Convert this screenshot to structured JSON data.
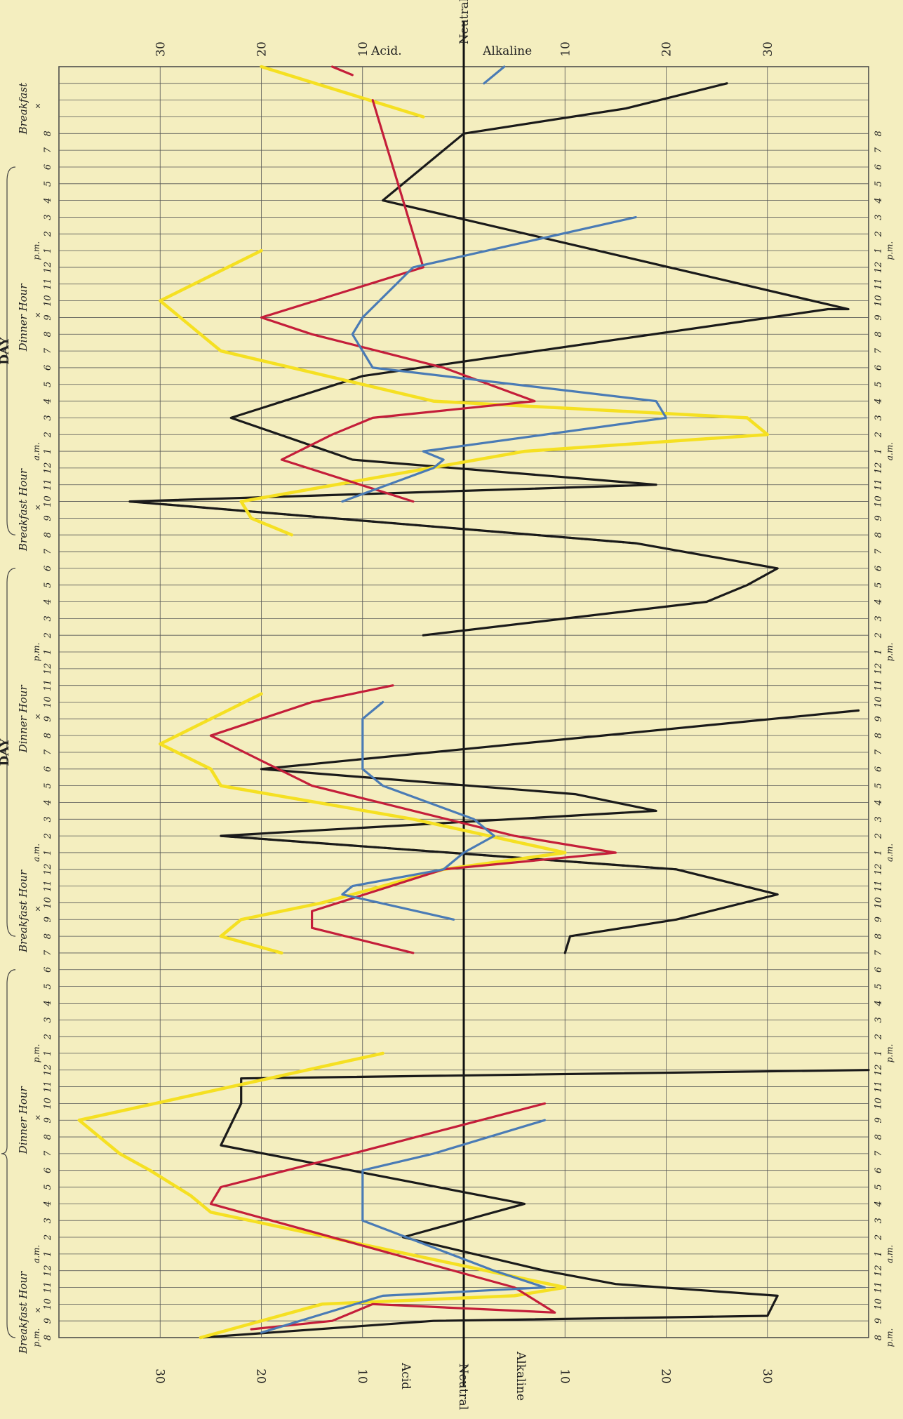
{
  "chart_data": {
    "type": "line",
    "orientation": "rotated 90 degrees; time runs vertically (bottom to top), acidity/alkalinity runs horizontally",
    "value_axis": {
      "range": [
        -40,
        40
      ],
      "ticks": [
        -30,
        -20,
        -10,
        0,
        10,
        20,
        30
      ],
      "top_labels": [
        "30",
        "20",
        "10",
        "Acid.",
        "Neutral",
        "Alkaline",
        "10",
        "20",
        "30"
      ],
      "bottom_labels": [
        "30",
        "20",
        "10",
        "Acid",
        "Neutral",
        "Alkaline",
        "10",
        "20",
        "30"
      ],
      "negative_side": "Acid",
      "positive_side": "Alkaline",
      "zero_label": "Neutral"
    },
    "time_axis": {
      "unit": "hour index (1 per ruled line, 3 days of hours)",
      "range": [
        0,
        76
      ],
      "hour_labels": [
        "8",
        "9",
        "10",
        "11",
        "12",
        "1",
        "2",
        "3",
        "4",
        "5",
        "6",
        "7",
        "8",
        "9",
        "10",
        "11",
        "12",
        "1",
        "2",
        "3",
        "4",
        "5",
        "6",
        "7",
        "8",
        "9",
        "10",
        "11",
        "12",
        "1",
        "2",
        "3",
        "4",
        "5",
        "6",
        "7",
        "8",
        "9",
        "10",
        "11",
        "12",
        "1",
        "2",
        "3",
        "4",
        "5",
        "6",
        "7",
        "8",
        "9",
        "10",
        "11",
        "12",
        "1",
        "2",
        "3",
        "4",
        "5",
        "6",
        "7",
        "8",
        "9",
        "10",
        "11",
        "12",
        "1",
        "2",
        "3",
        "4",
        "5",
        "6",
        "7",
        "8"
      ],
      "am_pm_markers": [
        {
          "t": 0,
          "text": "p.m."
        },
        {
          "t": 5,
          "text": "a.m."
        },
        {
          "t": 17,
          "text": "p.m."
        },
        {
          "t": 29,
          "text": "a.m."
        },
        {
          "t": 41,
          "text": "p.m."
        },
        {
          "t": 53,
          "text": "a.m."
        },
        {
          "t": 65,
          "text": "p.m."
        }
      ],
      "meal_labels": [
        {
          "t": 1.5,
          "text": "Breakfast Hour"
        },
        {
          "t": 13,
          "text": "Dinner Hour"
        },
        {
          "t": 25.5,
          "text": "Breakfast Hour"
        },
        {
          "t": 37,
          "text": "Dinner Hour"
        },
        {
          "t": 49.5,
          "text": "Breakfast Hour"
        },
        {
          "t": 61,
          "text": "Dinner Hour"
        },
        {
          "t": 73.5,
          "text": "Breakfast"
        }
      ],
      "day_headers": [
        {
          "t_from": 0,
          "t_to": 22,
          "text": ""
        },
        {
          "t_from": 24,
          "text": "DAY"
        },
        {
          "t_from": 48,
          "text": "DAY"
        }
      ]
    },
    "series": [
      {
        "color": "#1a1a1a",
        "points": [
          [
            -26,
            0
          ],
          [
            -3,
            1
          ],
          [
            30,
            1.3
          ],
          [
            31,
            2.5
          ],
          [
            15,
            3.2
          ],
          [
            8,
            4
          ],
          [
            -6,
            6
          ],
          [
            6,
            8
          ],
          [
            -24,
            11.5
          ],
          [
            -22,
            14
          ],
          [
            -22,
            15.5
          ],
          [
            40,
            16
          ],
          [
            10,
            23
          ],
          [
            10.5,
            24
          ],
          [
            21,
            25
          ],
          [
            31,
            26.5
          ],
          [
            21,
            28
          ],
          [
            -24,
            30
          ],
          [
            19,
            31.5
          ],
          [
            11,
            32.5
          ],
          [
            -20,
            34
          ],
          [
            39,
            37.5
          ],
          [
            -4,
            42
          ],
          [
            24,
            44
          ],
          [
            28,
            45
          ],
          [
            31,
            46
          ],
          [
            17,
            47.5
          ],
          [
            -33,
            50
          ],
          [
            19,
            51
          ],
          [
            -11,
            52.5
          ],
          [
            -23,
            55
          ],
          [
            -10,
            57.5
          ],
          [
            36,
            61.5
          ],
          [
            38,
            61.5
          ],
          [
            -8,
            68
          ],
          [
            0,
            72
          ],
          [
            16,
            73.5
          ],
          [
            26,
            75
          ]
        ],
        "segments": [
          [
            0,
            12
          ],
          [
            12,
            22
          ],
          [
            22,
            39
          ]
        ],
        "dashed": [
          [
            16,
            17
          ],
          [
            26,
            27
          ],
          [
            37,
            38
          ]
        ]
      },
      {
        "color": "#f5e022",
        "points": [
          [
            -26,
            0
          ],
          [
            -14,
            2
          ],
          [
            5,
            2.5
          ],
          [
            10,
            3
          ],
          [
            -25,
            7.5
          ],
          [
            -27,
            8.5
          ],
          [
            -31,
            10
          ],
          [
            -34,
            11
          ],
          [
            -38,
            13
          ],
          [
            -8,
            17
          ],
          [
            -18,
            23
          ],
          [
            -24,
            24
          ],
          [
            -22,
            25
          ],
          [
            -14,
            26
          ],
          [
            -2,
            28
          ],
          [
            10,
            29
          ],
          [
            -5,
            31
          ],
          [
            -24,
            33
          ],
          [
            -25,
            34
          ],
          [
            -30,
            35.5
          ],
          [
            -20,
            38.5
          ],
          [
            -17,
            48
          ],
          [
            -21,
            49
          ],
          [
            -22,
            50
          ],
          [
            6,
            53
          ],
          [
            30,
            54
          ],
          [
            28,
            55
          ],
          [
            -3,
            56
          ],
          [
            -24,
            59
          ],
          [
            -26,
            60
          ],
          [
            -30,
            62
          ],
          [
            -20,
            65
          ],
          [
            -4,
            73
          ],
          [
            -20,
            76
          ]
        ],
        "segments": [
          [
            0,
            10
          ],
          [
            10,
            21
          ],
          [
            21,
            32
          ],
          [
            32,
            34
          ]
        ]
      },
      {
        "color": "#c41e3a",
        "points": [
          [
            -21,
            0.5
          ],
          [
            -13,
            1
          ],
          [
            -9,
            2
          ],
          [
            9,
            1.5
          ],
          [
            5,
            3
          ],
          [
            -25,
            8
          ],
          [
            -24,
            9
          ],
          [
            -11,
            11
          ],
          [
            8,
            14
          ],
          [
            -5,
            23
          ],
          [
            -15,
            24.5
          ],
          [
            -15,
            25.5
          ],
          [
            -2,
            28
          ],
          [
            15,
            29
          ],
          [
            5,
            30
          ],
          [
            -15,
            33
          ],
          [
            -25,
            36
          ],
          [
            -15,
            38
          ],
          [
            -7,
            39
          ],
          [
            -5,
            50
          ],
          [
            -18,
            52.5
          ],
          [
            -13,
            54
          ],
          [
            -9,
            55
          ],
          [
            7,
            56
          ],
          [
            -2,
            58
          ],
          [
            -15,
            60
          ],
          [
            -20,
            61
          ],
          [
            -4,
            64
          ],
          [
            -9,
            74
          ],
          [
            -11,
            75.5
          ],
          [
            -13,
            76
          ]
        ],
        "segments": [
          [
            0,
            9
          ],
          [
            9,
            19
          ],
          [
            19,
            29
          ],
          [
            29,
            31
          ]
        ]
      },
      {
        "color": "#4a7bb5",
        "points": [
          [
            -20,
            0.3
          ],
          [
            -8,
            2.5
          ],
          [
            8,
            3
          ],
          [
            3,
            4
          ],
          [
            -10,
            7
          ],
          [
            -10,
            10
          ],
          [
            -3,
            11
          ],
          [
            8,
            13
          ],
          [
            -1,
            25
          ],
          [
            -12,
            26.5
          ],
          [
            -11,
            27
          ],
          [
            -2,
            28
          ],
          [
            0,
            29
          ],
          [
            3,
            30
          ],
          [
            1,
            31
          ],
          [
            -8,
            33
          ],
          [
            -10,
            34
          ],
          [
            -10,
            37
          ],
          [
            -8,
            38
          ],
          [
            -12,
            50
          ],
          [
            -3,
            52
          ],
          [
            -2,
            52.5
          ],
          [
            -4,
            53
          ],
          [
            20,
            55
          ],
          [
            19,
            56
          ],
          [
            -9,
            58
          ],
          [
            -11,
            60
          ],
          [
            -10,
            61
          ],
          [
            -5,
            64
          ],
          [
            17,
            67
          ],
          [
            2,
            75
          ],
          [
            4,
            76
          ]
        ],
        "segments": [
          [
            0,
            8
          ],
          [
            8,
            19
          ],
          [
            19,
            30
          ],
          [
            30,
            32
          ]
        ]
      }
    ]
  }
}
